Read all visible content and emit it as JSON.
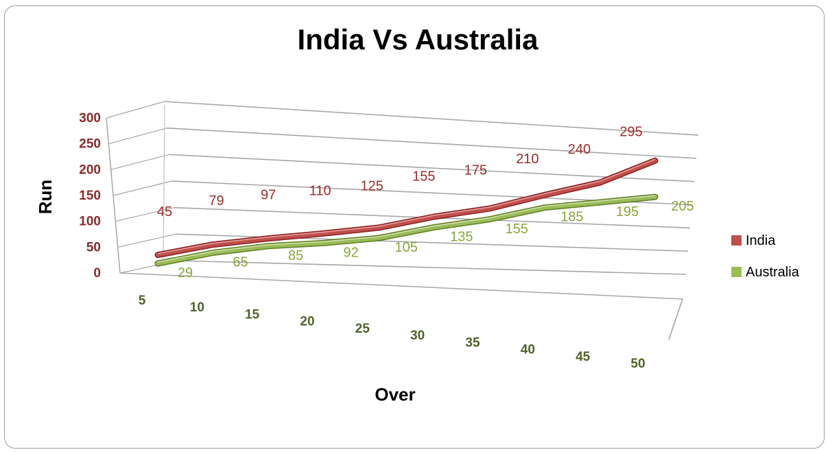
{
  "chart_data": {
    "type": "line",
    "title": "India Vs Australia",
    "xlabel": "Over",
    "ylabel": "Run",
    "categories": [
      "5",
      "10",
      "15",
      "20",
      "25",
      "30",
      "35",
      "40",
      "45",
      "50"
    ],
    "yticks": [
      "0",
      "50",
      "100",
      "150",
      "200",
      "250",
      "300"
    ],
    "ylim": [
      0,
      300
    ],
    "series": [
      {
        "name": "India",
        "color": "#c0504d",
        "values": [
          45,
          79,
          97,
          110,
          125,
          155,
          175,
          210,
          240,
          295
        ]
      },
      {
        "name": "Australia",
        "color": "#9bbb59",
        "values": [
          29,
          65,
          85,
          92,
          105,
          135,
          155,
          185,
          195,
          205
        ]
      }
    ],
    "legend_position": "right",
    "grid": true,
    "style": "3d-line"
  }
}
